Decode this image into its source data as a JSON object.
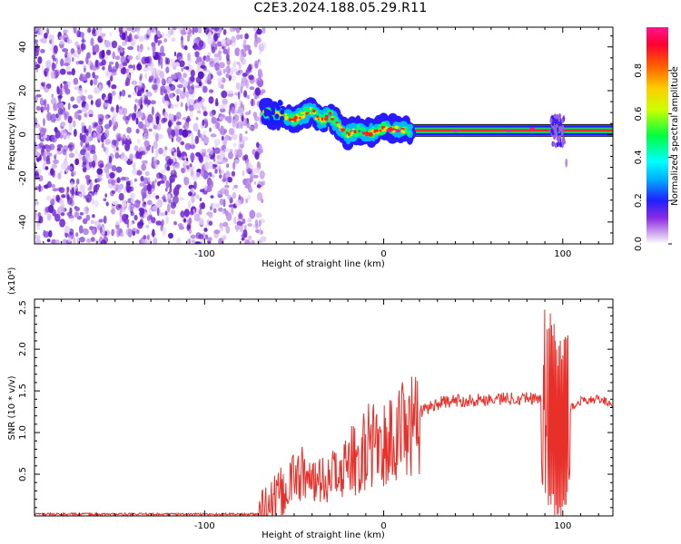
{
  "figure": {
    "title": "C2E3.2024.188.05.29.R11"
  },
  "chart_data": [
    {
      "type": "heatmap",
      "title": "C2E3.2024.188.05.29.R11",
      "xlabel": "Height of straight line (km)",
      "ylabel": "Frequency (Hz)",
      "xlim": [
        -195,
        128
      ],
      "ylim": [
        -50,
        49
      ],
      "x_ticks": [
        -100,
        0,
        100
      ],
      "y_ticks": [
        -40,
        -20,
        0,
        20,
        40
      ],
      "grid": false,
      "colorbar": {
        "label": "Normalized spectral amplitude",
        "range": [
          0.0,
          1.0
        ],
        "ticks": [
          0.0,
          0.2,
          0.4,
          0.6,
          0.8
        ],
        "colormap": [
          "#ffffff",
          "#8a2be2",
          "#0000ff",
          "#00ffff",
          "#00ff00",
          "#ffff00",
          "#ff8000",
          "#ff0000",
          "#ff1493"
        ]
      },
      "regions": [
        {
          "label": "noise",
          "x_range": [
            -195,
            -67
          ],
          "freq_range": [
            -50,
            49
          ],
          "amplitude": 0.1
        },
        {
          "label": "carrier",
          "x_range": [
            -67,
            128
          ],
          "amplitude_peak": 0.8
        }
      ],
      "carrier_track": {
        "x": [
          -67,
          -60,
          -50,
          -40,
          -35,
          -30,
          -25,
          -20,
          -15,
          -10,
          -5,
          0,
          10,
          20,
          40,
          60,
          80,
          90,
          95,
          100,
          110,
          128
        ],
        "freq": [
          10,
          9,
          7,
          11,
          6,
          9,
          4,
          0,
          2,
          0,
          1,
          3,
          2,
          2,
          2,
          2,
          2,
          3,
          5,
          2,
          2,
          2
        ]
      }
    },
    {
      "type": "line",
      "xlabel": "Height of straight line (km)",
      "ylabel": "SNR (10 * v/v)",
      "y_multiplier": "(x10⁴)",
      "xlim": [
        -195,
        128
      ],
      "ylim": [
        0,
        2.6
      ],
      "x_ticks": [
        -100,
        0,
        100
      ],
      "y_ticks": [
        0.5,
        1.0,
        1.5,
        2.0,
        2.5
      ],
      "grid": false,
      "color": "#e8302a",
      "series": [
        {
          "x": [
            -195,
            -140,
            -70,
            -60,
            -52,
            -45,
            -40,
            -35,
            -30,
            -25,
            -20,
            -15,
            -10,
            -5,
            0,
            10,
            20,
            30,
            40,
            60,
            80,
            88,
            92,
            95,
            97,
            99,
            101,
            103,
            105,
            110,
            120,
            128
          ],
          "values": [
            0.02,
            0.02,
            0.02,
            0.15,
            0.4,
            0.55,
            0.45,
            0.5,
            0.55,
            0.6,
            0.75,
            0.8,
            0.95,
            1.0,
            1.0,
            1.15,
            1.25,
            1.35,
            1.38,
            1.4,
            1.42,
            1.4,
            1.3,
            1.2,
            0.9,
            1.0,
            1.1,
            1.2,
            1.3,
            1.38,
            1.4,
            1.35
          ]
        }
      ]
    }
  ],
  "text": {
    "top_ticks_x": [
      "-100",
      "0",
      "100"
    ],
    "top_ticks_y": [
      "-40",
      "-20",
      "0",
      "20",
      "40"
    ],
    "cb_ticks": [
      "0.0",
      "0.2",
      "0.4",
      "0.6",
      "0.8"
    ],
    "bottom_ticks_y": [
      "0.5",
      "1.0",
      "1.5",
      "2.0",
      "2.5"
    ]
  }
}
